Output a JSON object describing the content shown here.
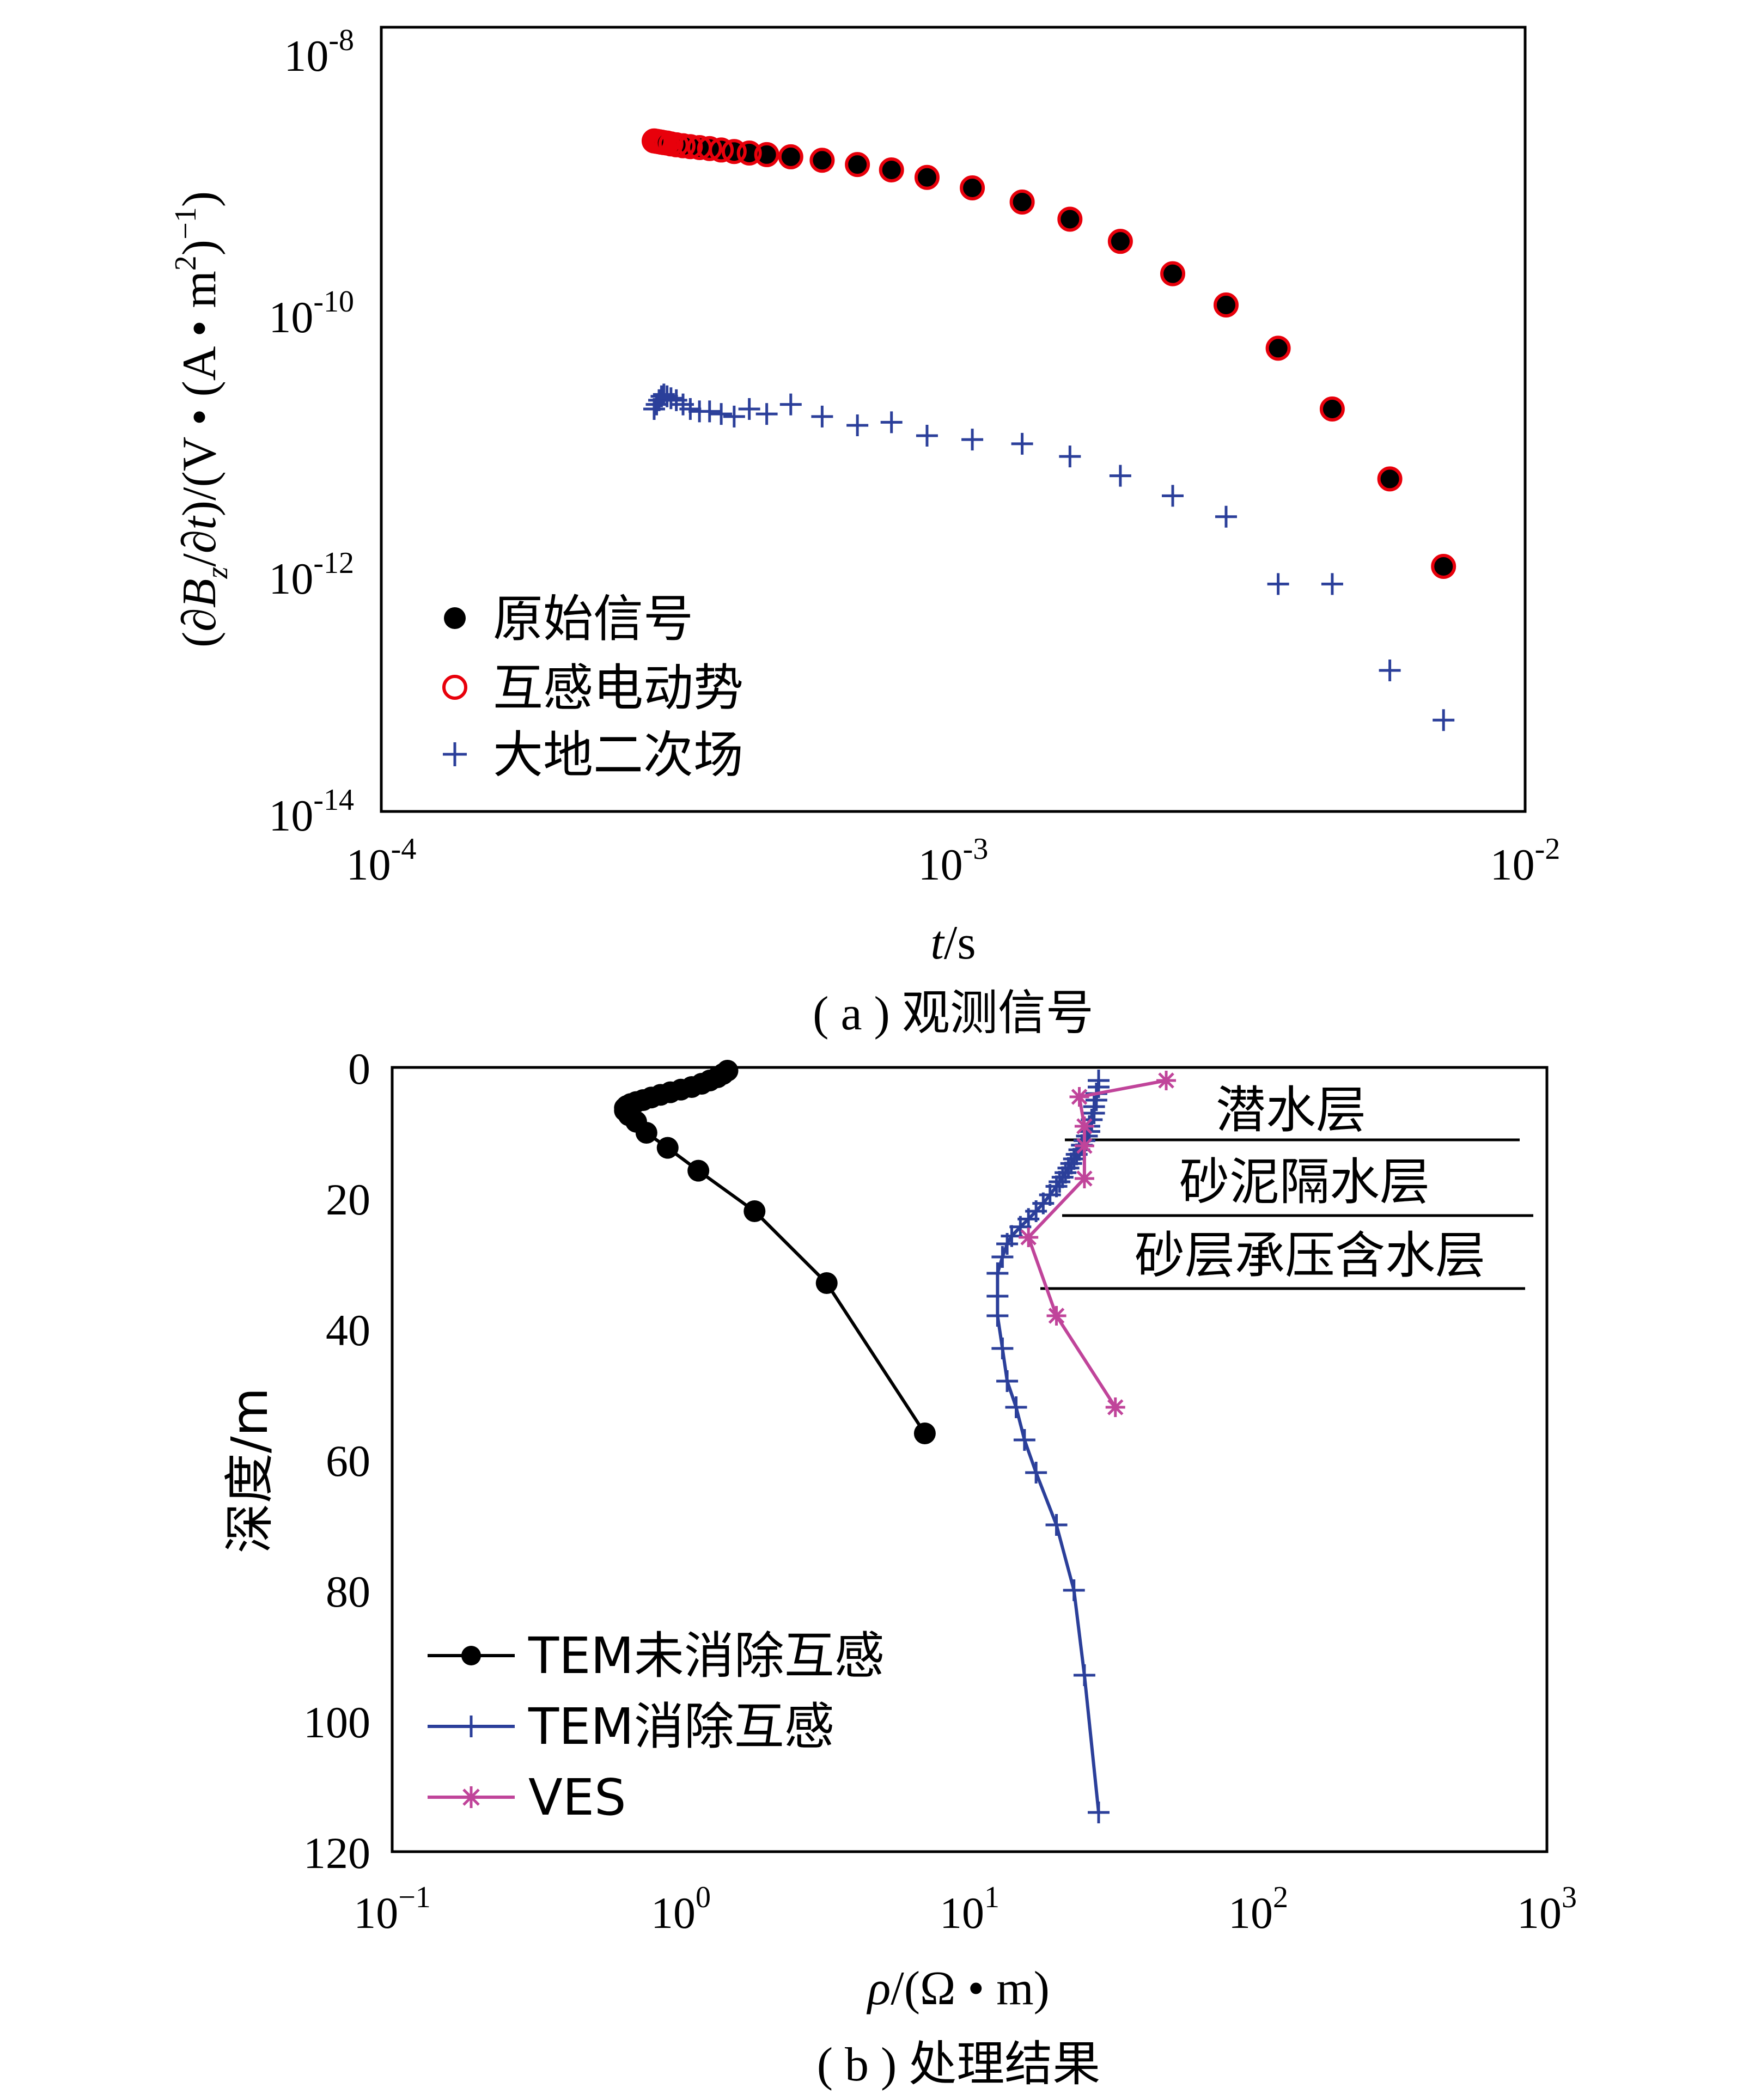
{
  "chart_data": [
    {
      "type": "scatter",
      "xscale": "log",
      "yscale": "log",
      "xlim": [
        0.0001,
        0.01
      ],
      "ylim": [
        1e-14,
        1e-08
      ],
      "x_ticks": [
        {
          "base": "10",
          "exp": "-4"
        },
        {
          "base": "10",
          "exp": "-3"
        },
        {
          "base": "10",
          "exp": "-2"
        }
      ],
      "y_ticks": [
        {
          "base": "10",
          "exp": "-8"
        },
        {
          "base": "10",
          "exp": "-10"
        },
        {
          "base": "10",
          "exp": "-12"
        },
        {
          "base": "10",
          "exp": "-14"
        }
      ],
      "xlabel": {
        "var": "t",
        "unit": "/s"
      },
      "ylabel": {
        "p1": "(∂",
        "B": "B",
        "z": "z",
        "p2": "/∂",
        "t": "t",
        "p3": ")/(V • (A • m",
        "two": "2",
        "p4": ")",
        "neg1": "−1",
        "p5": ")"
      },
      "caption": "( a ) 观测信号",
      "grid": false,
      "legend_position": "bottom-left",
      "series": [
        {
          "name": "原始信号",
          "marker": "filled-circle",
          "color": "#000000",
          "x": [
            0.0003,
            0.000303,
            0.000306,
            0.000309,
            0.000312,
            0.000316,
            0.000321,
            0.000328,
            0.000337,
            0.000347,
            0.00036,
            0.000375,
            0.000393,
            0.000414,
            0.00044,
            0.000472,
            0.00052,
            0.00059,
            0.00068,
            0.00078,
            0.0009,
            0.00108,
            0.00132,
            0.0016,
            0.00196,
            0.00242,
            0.003,
            0.0037,
            0.0046,
            0.0058,
            0.0072
          ],
          "y": [
            1.35e-09,
            1.34e-09,
            1.33e-09,
            1.32e-09,
            1.31e-09,
            1.3e-09,
            1.28e-09,
            1.26e-09,
            1.24e-09,
            1.22e-09,
            1.2e-09,
            1.18e-09,
            1.15e-09,
            1.12e-09,
            1.09e-09,
            1.06e-09,
            1.02e-09,
            9.6e-10,
            8.9e-10,
            8.1e-10,
            7.1e-10,
            5.9e-10,
            4.6e-10,
            3.4e-10,
            2.3e-10,
            1.3e-10,
            7.5e-11,
            3.5e-11,
            1.2e-11,
            3.5e-12,
            7.5e-13
          ]
        },
        {
          "name": "互感电动势",
          "marker": "open-circle",
          "color": "#e8000b",
          "x": [
            0.0003,
            0.000303,
            0.000306,
            0.000309,
            0.000312,
            0.000316,
            0.000321,
            0.000328,
            0.000337,
            0.000347,
            0.00036,
            0.000375,
            0.000393,
            0.000414,
            0.00044,
            0.000472,
            0.00052,
            0.00059,
            0.00068,
            0.00078,
            0.0009,
            0.00108,
            0.00132,
            0.0016,
            0.00196,
            0.00242,
            0.003,
            0.0037,
            0.0046,
            0.0058,
            0.0072
          ],
          "y": [
            1.35e-09,
            1.34e-09,
            1.33e-09,
            1.32e-09,
            1.31e-09,
            1.3e-09,
            1.28e-09,
            1.26e-09,
            1.24e-09,
            1.22e-09,
            1.2e-09,
            1.18e-09,
            1.15e-09,
            1.12e-09,
            1.09e-09,
            1.06e-09,
            1.02e-09,
            9.6e-10,
            8.9e-10,
            8.1e-10,
            7.1e-10,
            5.9e-10,
            4.6e-10,
            3.4e-10,
            2.3e-10,
            1.3e-10,
            7.5e-11,
            3.5e-11,
            1.2e-11,
            3.5e-12,
            7.5e-13
          ]
        },
        {
          "name": "大地二次场",
          "marker": "plus",
          "color": "#2b3f9a",
          "x": [
            0.0003,
            0.000303,
            0.000306,
            0.000309,
            0.000312,
            0.000316,
            0.000321,
            0.000328,
            0.000337,
            0.000347,
            0.00036,
            0.000375,
            0.000393,
            0.000414,
            0.00044,
            0.000472,
            0.00052,
            0.00059,
            0.00068,
            0.00078,
            0.0009,
            0.00108,
            0.00132,
            0.0016,
            0.00196,
            0.00242,
            0.003,
            0.0037,
            0.0046,
            0.0058,
            0.0072
          ],
          "y": [
            1.2e-11,
            1.3e-11,
            1.4e-11,
            1.5e-11,
            1.55e-11,
            1.5e-11,
            1.45e-11,
            1.4e-11,
            1.3e-11,
            1.2e-11,
            1.15e-11,
            1.15e-11,
            1.1e-11,
            1.05e-11,
            1.2e-11,
            1.1e-11,
            1.3e-11,
            1.05e-11,
            9e-12,
            9.5e-12,
            7.5e-12,
            7e-12,
            6.5e-12,
            5.2e-12,
            3.7e-12,
            2.6e-12,
            1.8e-12,
            5.5e-13,
            5.5e-13,
            1.2e-13,
            5e-14
          ]
        }
      ]
    },
    {
      "type": "line",
      "xscale": "log",
      "xlim": [
        0.1,
        1000
      ],
      "ylim": [
        0,
        120
      ],
      "y_inverted": true,
      "x_ticks": [
        {
          "base": "10",
          "exp": "−1"
        },
        {
          "base": "10",
          "exp": "0"
        },
        {
          "base": "10",
          "exp": "1"
        },
        {
          "base": "10",
          "exp": "2"
        },
        {
          "base": "10",
          "exp": "3"
        }
      ],
      "y_ticks": [
        "0",
        "20",
        "40",
        "60",
        "80",
        "100",
        "120"
      ],
      "y_tick_values": [
        0,
        20,
        40,
        60,
        80,
        100,
        120
      ],
      "xlabel": {
        "rho": "ρ",
        "unit": "/(Ω • m)"
      },
      "ylabel": "深度/m",
      "caption": "( b ) 处理结果",
      "grid": false,
      "legend_position": "bottom-left",
      "annotations": [
        "潜水层",
        "砂泥隔水层",
        "砂层承压含水层"
      ],
      "series": [
        {
          "name": "TEM未消除互感",
          "marker": "filled-circle",
          "color": "#000000",
          "x": [
            1.45,
            1.4,
            1.34,
            1.26,
            1.18,
            1.09,
            1.0,
            0.92,
            0.85,
            0.79,
            0.74,
            0.7,
            0.67,
            0.65,
            0.64,
            0.64,
            0.66,
            0.7,
            0.76,
            0.9,
            1.15,
            1.8,
            3.2,
            7.0
          ],
          "y": [
            0.5,
            1.0,
            1.5,
            2.0,
            2.5,
            3.0,
            3.4,
            3.8,
            4.2,
            4.6,
            5.0,
            5.3,
            5.6,
            5.9,
            6.2,
            6.6,
            7.3,
            8.3,
            10.0,
            12.3,
            15.8,
            22.0,
            33.0,
            56.0
          ]
        },
        {
          "name": "TEM消除互感",
          "marker": "plus",
          "color": "#2b3f9a",
          "x": [
            28,
            28,
            27.5,
            27.5,
            27,
            27,
            26.5,
            26,
            26,
            25.5,
            25,
            24.5,
            24,
            23.5,
            23,
            22.5,
            22,
            21.5,
            21,
            20.5,
            20,
            19,
            18,
            17,
            16,
            15,
            14,
            13.5,
            13,
            12.5,
            12.5,
            12.5,
            13,
            13.5,
            14.5,
            15.5,
            17,
            20,
            23,
            25,
            28
          ],
          "y": [
            2.0,
            3.0,
            4.0,
            5.0,
            6.0,
            7.0,
            8.0,
            9.0,
            9.8,
            10.5,
            11.2,
            11.9,
            12.6,
            13.3,
            14.0,
            14.7,
            15.4,
            16.1,
            16.8,
            17.5,
            18.2,
            19.5,
            20.8,
            22.0,
            23.2,
            24.4,
            25.8,
            27.0,
            29.0,
            31.5,
            35.0,
            38.0,
            43.0,
            48.0,
            52.0,
            57.0,
            62.0,
            70.0,
            80.0,
            93.0,
            114.0
          ]
        },
        {
          "name": "VES",
          "marker": "asterisk",
          "color": "#c0449a",
          "x": [
            48,
            24,
            25,
            25,
            25,
            16,
            20,
            32
          ],
          "y": [
            2.0,
            4.5,
            9.0,
            12.0,
            17.0,
            26.0,
            38.0,
            52.0
          ]
        }
      ]
    }
  ]
}
